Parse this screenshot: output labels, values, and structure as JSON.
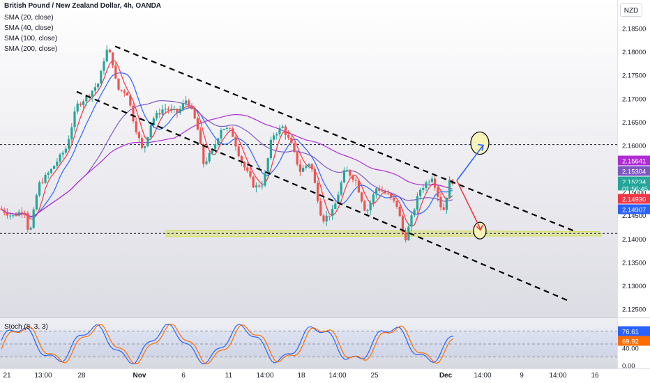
{
  "legend": {
    "title": "British Pound / New Zealand Dollar, 4h, OANDA",
    "sma20": "SMA (20, close)",
    "sma40": "SMA (40, close)",
    "sma100": "SMA (100, close)",
    "sma200": "SMA (200, close)"
  },
  "currency_button": "NZD",
  "stoch_label": "Stoch (8, 3, 3)",
  "colors": {
    "up": "#26a69a",
    "down": "#ef5350",
    "sma20": "#f23645",
    "sma40": "#2962ff",
    "sma100": "#7e57c2",
    "sma200": "#b02bd6",
    "stoch_k": "#2962ff",
    "stoch_d": "#ff6d00",
    "arrow_up": "#2962ff",
    "arrow_down": "#f23645",
    "zone": "#d4e157"
  },
  "chart_data": {
    "type": "candlestick",
    "ylim": [
      2.1225,
      2.1895
    ],
    "y_ticks": [
      "2.18500",
      "2.18000",
      "2.17500",
      "2.17000",
      "2.16500",
      "2.16000",
      "2.15500",
      "2.15000",
      "2.14500",
      "2.14000",
      "2.13500",
      "2.13000",
      "2.12500"
    ],
    "x_ticks": [
      "21",
      "13:00",
      "28",
      "Nov",
      "6",
      "11",
      "14:00",
      "18",
      "14:00",
      "25",
      "Dec",
      "14:00",
      "9",
      "14:00",
      "16"
    ],
    "bold_x_ticks": [
      "Nov",
      "Dec"
    ],
    "price_labels": [
      {
        "value": "2.15641",
        "color": "#b02bd6"
      },
      {
        "value": "2.15304",
        "color": "#7e57c2"
      },
      {
        "value": "2.15234",
        "color": "#26a69a"
      },
      {
        "value": "01:56:45",
        "color": "#26a69a"
      },
      {
        "value": "2.14930",
        "color": "#f23645"
      },
      {
        "value": "2.14907",
        "color": "#2962ff"
      }
    ],
    "horizontal_levels": [
      2.1602,
      2.1412
    ],
    "support_zone": [
      2.1405,
      2.1419
    ],
    "channel_upper": {
      "from": [
        "28",
        2.1812
      ],
      "to": [
        "16",
        2.1418
      ]
    },
    "channel_lower": {
      "from": [
        "21",
        2.1715
      ],
      "to": [
        "16",
        2.1265
      ]
    },
    "projection": {
      "current": 2.1525,
      "target_up": 2.1605,
      "target_down": 2.1418
    },
    "stoch": {
      "k": 76.61,
      "d": 69.92,
      "k_label": "76.61",
      "d_label": "69.92",
      "ylim": [
        0,
        100
      ],
      "y_ticks": [
        "80.00",
        "40.00",
        "0.00"
      ],
      "bands": [
        20,
        80
      ]
    }
  }
}
